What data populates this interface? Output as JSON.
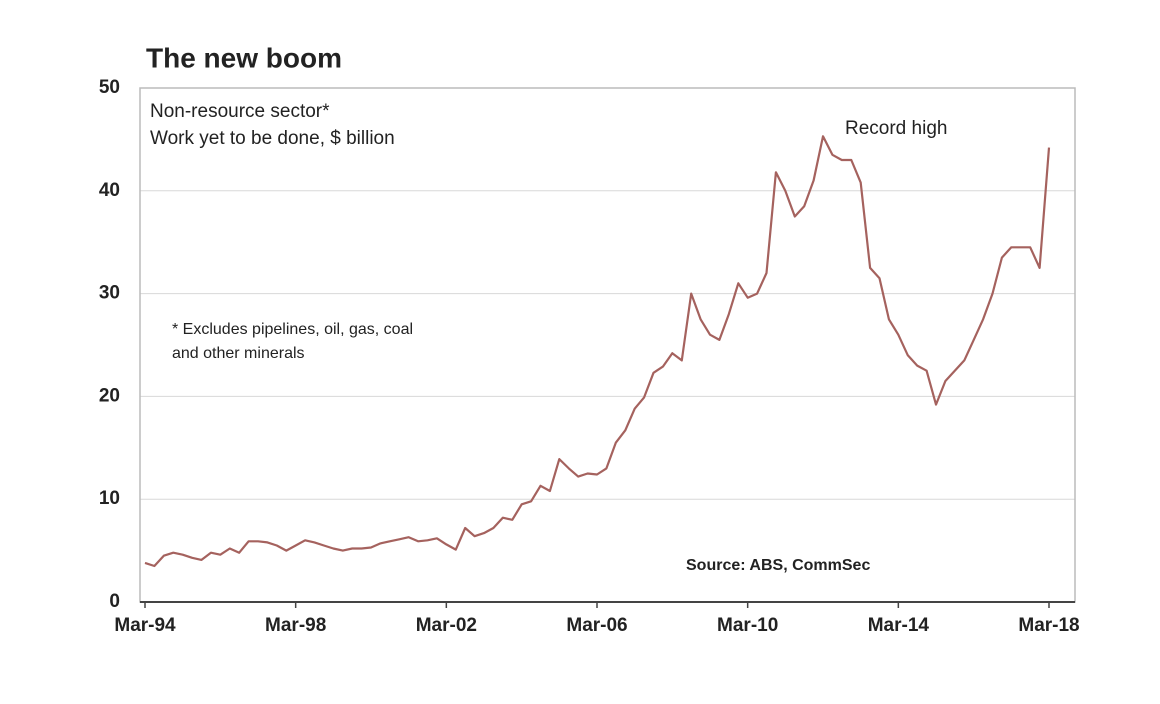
{
  "chart_data": {
    "type": "line",
    "title": "The new boom",
    "subtitle": [
      "Non-resource sector*",
      "Work yet to be done, $ billion"
    ],
    "note": [
      "* Excludes pipelines, oil, gas, coal",
      "and other minerals"
    ],
    "annotation": "Record high",
    "source": "Source: ABS, CommSec",
    "categories": [
      "Mar-94",
      null,
      null,
      null,
      null,
      null,
      null,
      null,
      null,
      null,
      null,
      null,
      null,
      null,
      null,
      null,
      "Mar-98",
      null,
      null,
      null,
      null,
      null,
      null,
      null,
      null,
      null,
      null,
      null,
      null,
      null,
      null,
      null,
      "Mar-02",
      null,
      null,
      null,
      null,
      null,
      null,
      null,
      null,
      null,
      null,
      null,
      null,
      null,
      null,
      null,
      "Mar-06",
      null,
      null,
      null,
      null,
      null,
      null,
      null,
      null,
      null,
      null,
      null,
      null,
      null,
      null,
      null,
      "Mar-10",
      null,
      null,
      null,
      null,
      null,
      null,
      null,
      null,
      null,
      null,
      null,
      null,
      null,
      null,
      null,
      "Mar-14",
      null,
      null,
      null,
      null,
      null,
      null,
      null,
      null,
      null,
      null,
      null,
      null,
      null,
      null,
      null,
      "Mar-18"
    ],
    "values": [
      3.8,
      3.5,
      4.5,
      4.8,
      4.6,
      4.3,
      4.1,
      4.8,
      4.6,
      5.2,
      4.8,
      5.9,
      5.9,
      5.8,
      5.5,
      5.0,
      5.5,
      6.0,
      5.8,
      5.5,
      5.2,
      5.0,
      5.2,
      5.2,
      5.3,
      5.7,
      5.9,
      6.1,
      6.3,
      5.9,
      6.0,
      6.2,
      5.6,
      5.1,
      7.2,
      6.4,
      6.7,
      7.2,
      8.2,
      8.0,
      9.5,
      9.8,
      11.3,
      10.8,
      13.9,
      13.0,
      12.2,
      12.5,
      12.4,
      13.0,
      15.5,
      16.7,
      18.8,
      19.9,
      22.3,
      22.9,
      24.2,
      23.5,
      30.0,
      27.5,
      26.0,
      25.5,
      28.0,
      31.0,
      29.6,
      30.0,
      32.0,
      41.8,
      40.0,
      37.5,
      38.5,
      41.0,
      45.3,
      43.5,
      43.0,
      43.0,
      40.8,
      32.5,
      31.5,
      27.5,
      26.0,
      24.0,
      23.0,
      22.5,
      19.2,
      21.5,
      22.5,
      23.5,
      25.5,
      27.5,
      30.0,
      33.5,
      34.5,
      34.5,
      34.5,
      32.5,
      44.2
    ],
    "color": "#a5625e",
    "ylim": [
      0,
      50
    ],
    "yticks": [
      0,
      10,
      20,
      30,
      40,
      50
    ],
    "grid": true
  }
}
